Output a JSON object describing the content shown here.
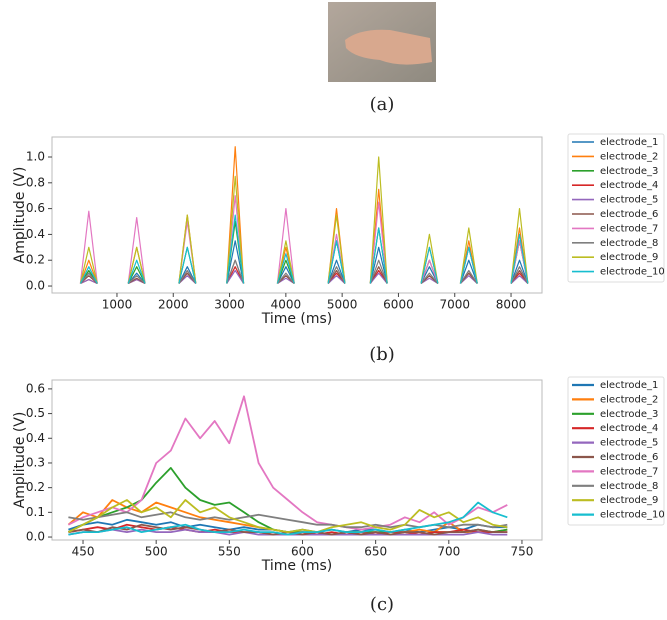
{
  "captions": [
    "(a)",
    "(b)",
    "(c)"
  ],
  "chart_data": [
    {
      "type": "line",
      "xlabel": "Time (ms)",
      "ylabel": "Amplitude (V)",
      "legend": "outside-right",
      "grid": false,
      "xlim": [
        -154,
        8550
      ],
      "ylim": [
        -0.054,
        1.155
      ],
      "xticks": [
        1000,
        2000,
        3000,
        4000,
        5000,
        6000,
        7000,
        8000
      ],
      "yticks": [
        {
          "value": 0,
          "label": "0.0"
        },
        0.2,
        0.4,
        0.6,
        0.8,
        {
          "value": 1,
          "label": "1.0"
        }
      ],
      "x": [
        350,
        500,
        650,
        950,
        1200,
        1350,
        1500,
        1800,
        2100,
        2250,
        2400,
        2700,
        2950,
        3100,
        3250,
        3550,
        3850,
        4000,
        4150,
        4450,
        4750,
        4900,
        5050,
        5300,
        5500,
        5650,
        5800,
        6100,
        6400,
        6550,
        6700,
        6900,
        7100,
        7250,
        7400,
        7700,
        8000,
        8150,
        8300
      ],
      "series": [
        {
          "name": "electrode_1",
          "color": "#1f77b4",
          "values": [
            0.02,
            0.1,
            0.02,
            null,
            0.02,
            0.1,
            0.02,
            null,
            0.02,
            0.15,
            0.02,
            null,
            0.02,
            0.35,
            0.02,
            null,
            0.02,
            0.15,
            0.02,
            null,
            0.02,
            0.2,
            0.02,
            null,
            0.02,
            0.3,
            0.02,
            null,
            0.02,
            0.15,
            0.02,
            null,
            0.02,
            0.2,
            0.02,
            null,
            0.02,
            0.2,
            0.02
          ]
        },
        {
          "name": "electrode_2",
          "color": "#ff7f0e",
          "values": [
            0.02,
            0.2,
            0.02,
            null,
            0.02,
            0.3,
            0.02,
            null,
            0.02,
            0.55,
            0.02,
            null,
            0.02,
            1.08,
            0.02,
            null,
            0.02,
            0.3,
            0.02,
            null,
            0.02,
            0.6,
            0.02,
            null,
            0.02,
            0.75,
            0.02,
            null,
            0.02,
            0.3,
            0.02,
            null,
            0.02,
            0.35,
            0.02,
            null,
            0.02,
            0.45,
            0.02
          ]
        },
        {
          "name": "electrode_3",
          "color": "#2ca02c",
          "values": [
            0.02,
            0.12,
            0.02,
            null,
            0.02,
            0.15,
            0.02,
            null,
            0.02,
            0.3,
            0.02,
            null,
            0.02,
            0.5,
            0.02,
            null,
            0.02,
            0.2,
            0.02,
            null,
            0.02,
            0.35,
            0.02,
            null,
            0.02,
            0.45,
            0.02,
            null,
            0.02,
            0.2,
            0.02,
            null,
            0.02,
            0.3,
            0.02,
            null,
            0.02,
            0.35,
            0.02
          ]
        },
        {
          "name": "electrode_4",
          "color": "#d62728",
          "values": [
            0.02,
            0.05,
            0.02,
            null,
            0.02,
            0.05,
            0.02,
            null,
            0.02,
            0.1,
            0.02,
            null,
            0.02,
            0.15,
            0.02,
            null,
            0.02,
            0.08,
            0.02,
            null,
            0.02,
            0.1,
            0.02,
            null,
            0.02,
            0.12,
            0.02,
            null,
            0.02,
            0.08,
            0.02,
            null,
            0.02,
            0.1,
            0.02,
            null,
            0.02,
            0.1,
            0.02
          ]
        },
        {
          "name": "electrode_5",
          "color": "#9467bd",
          "values": [
            0.02,
            0.05,
            0.02,
            null,
            0.02,
            0.05,
            0.02,
            null,
            0.02,
            0.08,
            0.02,
            null,
            0.02,
            0.12,
            0.02,
            null,
            0.02,
            0.06,
            0.02,
            null,
            0.02,
            0.08,
            0.02,
            null,
            0.02,
            0.1,
            0.02,
            null,
            0.02,
            0.06,
            0.02,
            null,
            0.02,
            0.08,
            0.02,
            null,
            0.02,
            0.08,
            0.02
          ]
        },
        {
          "name": "electrode_6",
          "color": "#8c564b",
          "values": [
            0.02,
            0.08,
            0.02,
            null,
            0.02,
            0.06,
            0.02,
            null,
            0.02,
            0.1,
            0.02,
            null,
            0.02,
            0.2,
            0.02,
            null,
            0.02,
            0.08,
            0.02,
            null,
            0.02,
            0.12,
            0.02,
            null,
            0.02,
            0.15,
            0.02,
            null,
            0.02,
            0.08,
            0.02,
            null,
            0.02,
            0.1,
            0.02,
            null,
            0.02,
            0.12,
            0.02
          ]
        },
        {
          "name": "electrode_7",
          "color": "#e377c2",
          "values": [
            0.02,
            0.58,
            0.02,
            null,
            0.02,
            0.53,
            0.02,
            null,
            0.02,
            0.5,
            0.02,
            null,
            0.02,
            0.7,
            0.02,
            null,
            0.02,
            0.6,
            0.02,
            null,
            0.02,
            0.4,
            0.02,
            null,
            0.02,
            0.65,
            0.02,
            null,
            0.02,
            0.2,
            0.02,
            null,
            0.02,
            0.3,
            0.02,
            null,
            0.02,
            0.35,
            0.02
          ]
        },
        {
          "name": "electrode_8",
          "color": "#7f7f7f",
          "values": [
            0.02,
            0.1,
            0.02,
            null,
            0.02,
            0.08,
            0.02,
            null,
            0.02,
            0.12,
            0.02,
            null,
            0.02,
            0.2,
            0.02,
            null,
            0.02,
            0.1,
            0.02,
            null,
            0.02,
            0.15,
            0.02,
            null,
            0.02,
            0.2,
            0.02,
            null,
            0.02,
            0.1,
            0.02,
            null,
            0.02,
            0.12,
            0.02,
            null,
            0.02,
            0.15,
            0.02
          ]
        },
        {
          "name": "electrode_9",
          "color": "#bcbd22",
          "values": [
            0.02,
            0.3,
            0.02,
            null,
            0.02,
            0.3,
            0.02,
            null,
            0.02,
            0.55,
            0.02,
            null,
            0.02,
            0.85,
            0.02,
            null,
            0.02,
            0.35,
            0.02,
            null,
            0.02,
            0.55,
            0.02,
            null,
            0.02,
            1.0,
            0.02,
            null,
            0.02,
            0.4,
            0.02,
            null,
            0.02,
            0.45,
            0.02,
            null,
            0.02,
            0.6,
            0.02
          ]
        },
        {
          "name": "electrode_10",
          "color": "#17becf",
          "values": [
            0.02,
            0.15,
            0.02,
            null,
            0.02,
            0.2,
            0.02,
            null,
            0.02,
            0.3,
            0.02,
            null,
            0.02,
            0.55,
            0.02,
            null,
            0.02,
            0.25,
            0.02,
            null,
            0.02,
            0.35,
            0.02,
            null,
            0.02,
            0.45,
            0.02,
            null,
            0.02,
            0.3,
            0.02,
            null,
            0.02,
            0.3,
            0.02,
            null,
            0.02,
            0.4,
            0.02
          ]
        }
      ]
    },
    {
      "type": "line",
      "xlabel": "Time (ms)",
      "ylabel": "Amplitude (V)",
      "legend": "outside-right",
      "grid": false,
      "xlim": [
        428.8,
        763.7
      ],
      "ylim": [
        -0.012,
        0.636
      ],
      "xticks": [
        450,
        500,
        550,
        600,
        650,
        700,
        750
      ],
      "yticks": [
        {
          "value": 0,
          "label": "0.0"
        },
        0.1,
        0.2,
        0.3,
        0.4,
        0.5,
        0.6
      ],
      "x": [
        440,
        450,
        460,
        470,
        480,
        490,
        500,
        510,
        520,
        530,
        540,
        550,
        560,
        570,
        580,
        590,
        600,
        610,
        620,
        630,
        640,
        650,
        660,
        670,
        680,
        690,
        700,
        710,
        720,
        730,
        740
      ],
      "series": [
        {
          "name": "electrode_1",
          "color": "#1f77b4",
          "values": [
            0.03,
            0.05,
            0.06,
            0.05,
            0.07,
            0.06,
            0.05,
            0.06,
            0.04,
            0.05,
            0.04,
            0.03,
            0.04,
            0.03,
            0.03,
            0.02,
            0.03,
            0.02,
            0.03,
            0.02,
            0.03,
            0.03,
            0.02,
            0.03,
            0.02,
            0.03,
            0.04,
            0.03,
            0.05,
            0.04,
            0.04
          ]
        },
        {
          "name": "electrode_2",
          "color": "#ff7f0e",
          "values": [
            0.05,
            0.1,
            0.08,
            0.15,
            0.12,
            0.1,
            0.14,
            0.12,
            0.1,
            0.08,
            0.07,
            0.06,
            0.05,
            0.04,
            0.03,
            0.02,
            0.02,
            0.01,
            0.01,
            0.02,
            0.02,
            0.02,
            0.01,
            0.02,
            0.03,
            0.02,
            0.06,
            0.02,
            0.02,
            0.02,
            0.03
          ]
        },
        {
          "name": "electrode_3",
          "color": "#2ca02c",
          "values": [
            0.02,
            0.05,
            0.08,
            0.1,
            0.12,
            0.15,
            0.22,
            0.28,
            0.2,
            0.15,
            0.13,
            0.14,
            0.1,
            0.06,
            0.03,
            0.02,
            0.02,
            0.02,
            0.01,
            0.02,
            0.02,
            0.02,
            0.02,
            0.02,
            0.01,
            0.02,
            0.02,
            0.02,
            0.03,
            0.02,
            0.03
          ]
        },
        {
          "name": "electrode_4",
          "color": "#d62728",
          "values": [
            0.02,
            0.03,
            0.04,
            0.03,
            0.05,
            0.04,
            0.03,
            0.04,
            0.03,
            0.02,
            0.03,
            0.02,
            0.02,
            0.02,
            0.01,
            0.01,
            0.02,
            0.01,
            0.02,
            0.01,
            0.02,
            0.01,
            0.02,
            0.02,
            0.01,
            0.02,
            0.02,
            0.03,
            0.02,
            0.02,
            0.02
          ]
        },
        {
          "name": "electrode_5",
          "color": "#9467bd",
          "values": [
            0.01,
            0.02,
            0.02,
            0.03,
            0.02,
            0.03,
            0.02,
            0.02,
            0.03,
            0.02,
            0.02,
            0.01,
            0.02,
            0.01,
            0.01,
            0.01,
            0.01,
            0.01,
            0.01,
            0.01,
            0.01,
            0.01,
            0.01,
            0.01,
            0.01,
            0.01,
            0.01,
            0.01,
            0.02,
            0.01,
            0.01
          ]
        },
        {
          "name": "electrode_6",
          "color": "#8c564b",
          "values": [
            0.02,
            0.03,
            0.02,
            0.04,
            0.03,
            0.05,
            0.04,
            0.03,
            0.04,
            0.03,
            0.02,
            0.03,
            0.02,
            0.02,
            0.01,
            0.02,
            0.01,
            0.02,
            0.01,
            0.02,
            0.01,
            0.02,
            0.01,
            0.02,
            0.02,
            0.01,
            0.02,
            0.02,
            0.03,
            0.02,
            0.02
          ]
        },
        {
          "name": "electrode_7",
          "color": "#e377c2",
          "values": [
            0.05,
            0.08,
            0.1,
            0.12,
            0.1,
            0.15,
            0.3,
            0.35,
            0.48,
            0.4,
            0.47,
            0.38,
            0.57,
            0.3,
            0.2,
            0.15,
            0.1,
            0.06,
            0.05,
            0.04,
            0.03,
            0.04,
            0.05,
            0.08,
            0.06,
            0.1,
            0.05,
            0.08,
            0.12,
            0.1,
            0.13
          ]
        },
        {
          "name": "electrode_8",
          "color": "#7f7f7f",
          "values": [
            0.08,
            0.07,
            0.08,
            0.09,
            0.1,
            0.08,
            0.09,
            0.1,
            0.08,
            0.07,
            0.08,
            0.07,
            0.08,
            0.09,
            0.08,
            0.07,
            0.06,
            0.05,
            0.05,
            0.04,
            0.04,
            0.05,
            0.04,
            0.05,
            0.04,
            0.05,
            0.04,
            0.05,
            0.05,
            0.04,
            0.05
          ]
        },
        {
          "name": "electrode_9",
          "color": "#bcbd22",
          "values": [
            0.02,
            0.05,
            0.08,
            0.12,
            0.15,
            0.1,
            0.12,
            0.08,
            0.15,
            0.1,
            0.12,
            0.08,
            0.06,
            0.04,
            0.03,
            0.02,
            0.03,
            0.02,
            0.04,
            0.05,
            0.06,
            0.04,
            0.03,
            0.05,
            0.11,
            0.08,
            0.1,
            0.06,
            0.08,
            0.05,
            0.04
          ]
        },
        {
          "name": "electrode_10",
          "color": "#17becf",
          "values": [
            0.01,
            0.02,
            0.02,
            0.03,
            0.04,
            0.02,
            0.03,
            0.04,
            0.05,
            0.03,
            0.02,
            0.02,
            0.03,
            0.02,
            0.02,
            0.01,
            0.02,
            0.02,
            0.03,
            0.02,
            0.02,
            0.03,
            0.02,
            0.03,
            0.04,
            0.05,
            0.06,
            0.08,
            0.14,
            0.1,
            0.08
          ]
        }
      ]
    }
  ]
}
